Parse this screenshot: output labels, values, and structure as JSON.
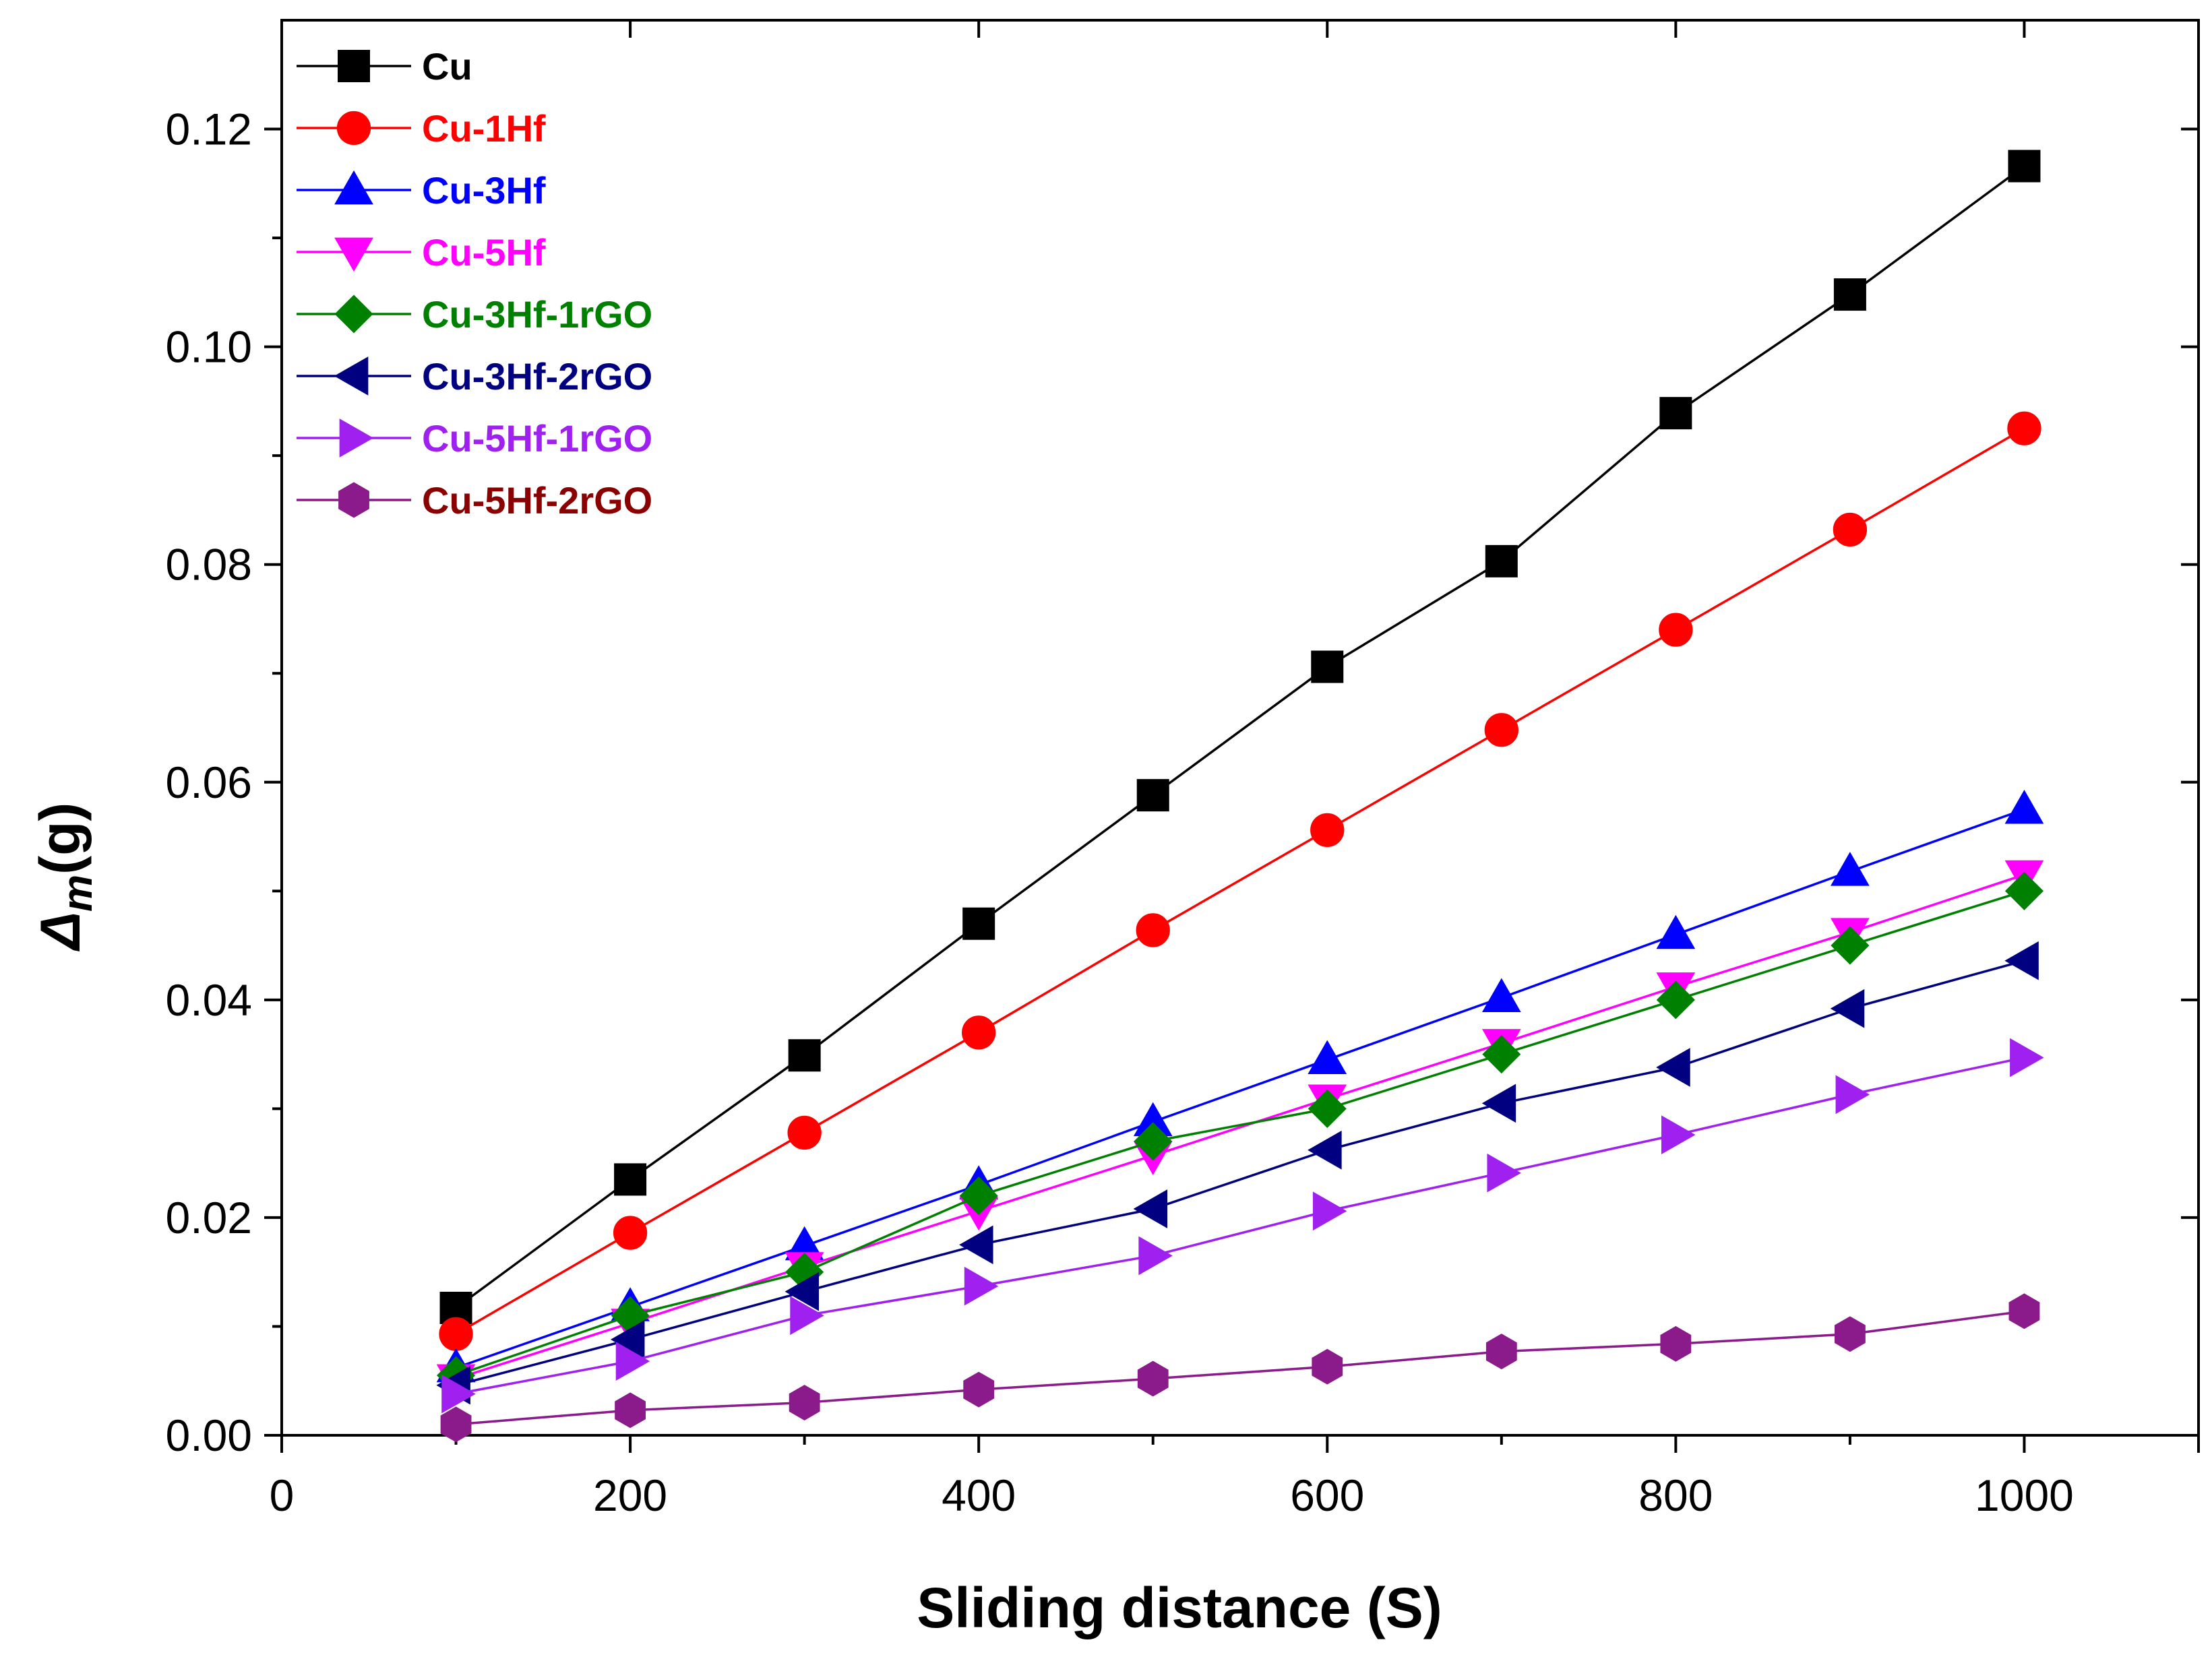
{
  "chart_data": {
    "type": "line",
    "title": "",
    "xlabel": "Sliding distance (S)",
    "ylabel_main": "Δ",
    "ylabel_sub": "m",
    "ylabel_unit": "(g)",
    "xlim": [
      0,
      1100
    ],
    "ylim": [
      0,
      0.13
    ],
    "xticks": [
      0,
      200,
      400,
      600,
      800,
      1000
    ],
    "xtick_labels": [
      "0",
      "200",
      "400",
      "600",
      "800",
      "1000"
    ],
    "yticks": [
      0,
      0.02,
      0.04,
      0.06,
      0.08,
      0.1,
      0.12
    ],
    "ytick_labels": [
      "0.00",
      "0.02",
      "0.04",
      "0.06",
      "0.08",
      "0.10",
      "0.12"
    ],
    "grid": false,
    "legend_position": "top-left",
    "x": [
      100,
      200,
      300,
      400,
      500,
      600,
      700,
      800,
      900,
      1000
    ],
    "series": [
      {
        "name": "Cu",
        "color": "#000000",
        "text_color": "#000000",
        "marker": "square",
        "values": [
          0.0117,
          0.0235,
          0.0349,
          0.047,
          0.0588,
          0.0706,
          0.0803,
          0.0939,
          0.1048,
          0.1166
        ]
      },
      {
        "name": "Cu-1Hf",
        "color": "#ff0000",
        "text_color": "#ff0000",
        "marker": "circle",
        "values": [
          0.0093,
          0.0186,
          0.0278,
          0.037,
          0.0464,
          0.0556,
          0.0648,
          0.074,
          0.0832,
          0.0925
        ]
      },
      {
        "name": "Cu-3Hf",
        "color": "#0000ff",
        "text_color": "#0000ff",
        "marker": "triangle-up",
        "values": [
          0.0062,
          0.0118,
          0.0174,
          0.023,
          0.0288,
          0.0345,
          0.0402,
          0.046,
          0.0518,
          0.0575
        ]
      },
      {
        "name": "Cu-5Hf",
        "color": "#ff00ff",
        "text_color": "#ff00ff",
        "marker": "triangle-down",
        "values": [
          0.0052,
          0.0103,
          0.0155,
          0.0206,
          0.0257,
          0.0309,
          0.036,
          0.0412,
          0.0462,
          0.0515
        ]
      },
      {
        "name": "Cu-3Hf-1rGO",
        "color": "#008000",
        "text_color": "#008000",
        "marker": "diamond",
        "values": [
          0.0055,
          0.011,
          0.015,
          0.022,
          0.027,
          0.03,
          0.035,
          0.04,
          0.045,
          0.05
        ]
      },
      {
        "name": "Cu-3Hf-2rGO",
        "color": "#000080",
        "text_color": "#000080",
        "marker": "triangle-left",
        "values": [
          0.0046,
          0.0088,
          0.0132,
          0.0175,
          0.0208,
          0.0262,
          0.0305,
          0.0338,
          0.0392,
          0.0436
        ]
      },
      {
        "name": "Cu-5Hf-1rGO",
        "color": "#a020f0",
        "text_color": "#a020f0",
        "marker": "triangle-right",
        "values": [
          0.0038,
          0.0068,
          0.011,
          0.0137,
          0.0165,
          0.0206,
          0.0241,
          0.0276,
          0.0313,
          0.0347
        ]
      },
      {
        "name": "Cu-5Hf-2rGO",
        "color": "#8b1a8b",
        "text_color": "#8b0000",
        "marker": "hexagon",
        "values": [
          0.001,
          0.0023,
          0.003,
          0.0042,
          0.0052,
          0.0063,
          0.0077,
          0.0084,
          0.0093,
          0.0114
        ]
      }
    ]
  }
}
